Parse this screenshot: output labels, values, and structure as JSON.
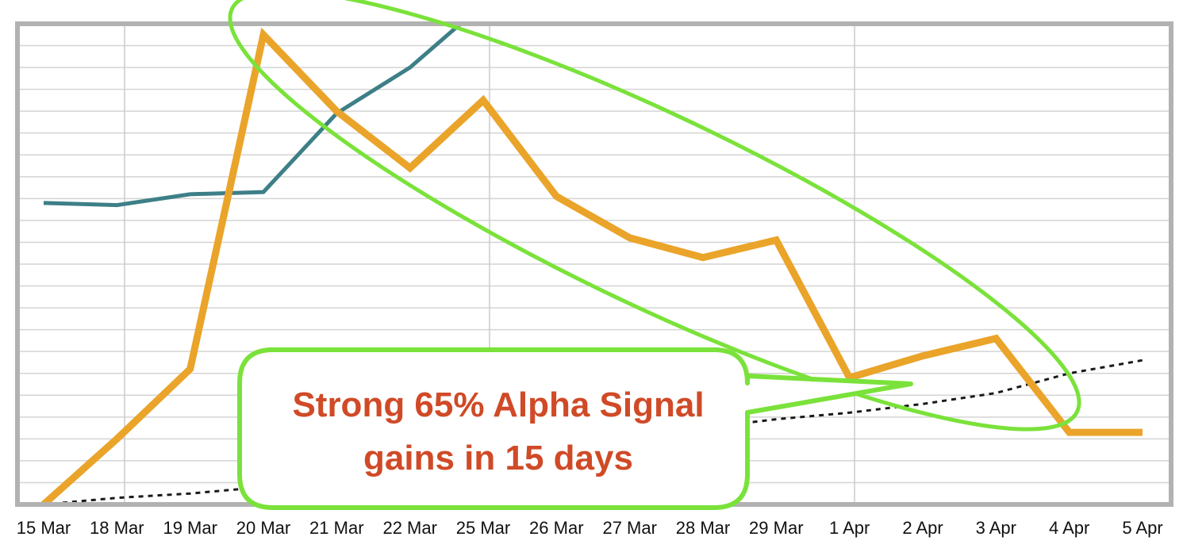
{
  "chart_data": {
    "type": "line",
    "categories": [
      "15 Mar",
      "18 Mar",
      "19 Mar",
      "20 Mar",
      "21 Mar",
      "22 Mar",
      "25 Mar",
      "26 Mar",
      "27 Mar",
      "28 Mar",
      "29 Mar",
      "1 Apr",
      "2 Apr",
      "3 Apr",
      "4 Apr",
      "5 Apr"
    ],
    "ylim": [
      0,
      22
    ],
    "grid": true,
    "legend": "none",
    "series": [
      {
        "color": "#eaa42a",
        "style": "solid",
        "values": [
          0,
          3,
          6.2,
          21.5,
          18,
          15.4,
          18.5,
          14.1,
          12.2,
          11.3,
          12.1,
          5.8,
          6.8,
          7.6,
          3.3,
          3.3
        ]
      },
      {
        "color": "#3d7f87",
        "style": "solid",
        "values": [
          13.8,
          13.7,
          14.2,
          14.3,
          17.9,
          20,
          22.9,
          null,
          null,
          null,
          null,
          null,
          null,
          null,
          null,
          null
        ]
      },
      {
        "color": "#1a1a1a",
        "style": "dotted",
        "values": [
          0,
          0.3,
          0.5,
          0.8,
          1.2,
          1.6,
          2,
          2.5,
          3,
          3.5,
          3.9,
          4.2,
          4.6,
          5.1,
          6,
          6.6
        ]
      }
    ],
    "annotations": [
      {
        "shape": "ellipse",
        "color": "#7ae23a",
        "from_category": "20 Mar",
        "to_category": "3 Apr"
      },
      {
        "shape": "callout",
        "color": "#7ae23a",
        "text_color": "#d04a27",
        "lines": [
          "Strong 65% Alpha Signal",
          "gains in 15 days"
        ]
      }
    ]
  }
}
